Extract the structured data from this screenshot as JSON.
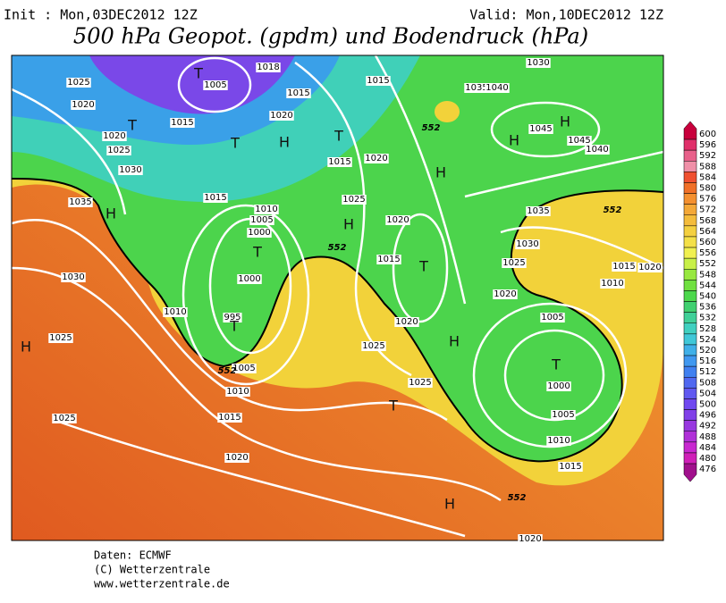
{
  "header": {
    "init": "Init : Mon,03DEC2012 12Z",
    "valid": "Valid: Mon,10DEC2012 12Z",
    "title": "500 hPa Geopot. (gpdm) und Bodendruck (hPa)"
  },
  "map": {
    "isobar_labels": [
      "1018",
      "1005",
      "1025",
      "1020",
      "1015",
      "1020",
      "1025",
      "1030",
      "1035",
      "1030",
      "1025",
      "1025",
      "1015",
      "1020",
      "1015",
      "1015",
      "1020",
      "1025",
      "1015",
      "1010",
      "1005",
      "1000",
      "1000",
      "995",
      "1010",
      "1005",
      "1010",
      "1015",
      "1020",
      "1020",
      "1015",
      "1020",
      "1025",
      "1025",
      "1035",
      "1040",
      "1030",
      "1045",
      "1045",
      "1040",
      "1035",
      "1030",
      "1025",
      "1020",
      "1015",
      "1020",
      "1010",
      "1005",
      "1000",
      "1005",
      "1010",
      "1015",
      "1020"
    ],
    "contour_552_labels": [
      "552",
      "552",
      "552",
      "552",
      "552"
    ],
    "pressure_centers": [
      "H",
      "H",
      "T",
      "T",
      "T",
      "H",
      "T",
      "H",
      "T",
      "T",
      "H",
      "T",
      "H",
      "T",
      "T",
      "H",
      "H",
      "H"
    ]
  },
  "colorbar": {
    "levels": [
      600,
      596,
      592,
      588,
      584,
      580,
      576,
      572,
      568,
      564,
      560,
      556,
      552,
      548,
      544,
      540,
      536,
      532,
      528,
      524,
      520,
      516,
      512,
      508,
      504,
      500,
      496,
      492,
      488,
      484,
      480,
      476
    ],
    "colors": [
      "#c8003c",
      "#e0306a",
      "#e8608a",
      "#f090a8",
      "#f05030",
      "#f07028",
      "#f49030",
      "#f4a838",
      "#f4bc3c",
      "#f4d040",
      "#f4e048",
      "#f0f050",
      "#c8f048",
      "#98e840",
      "#70e040",
      "#4cd84c",
      "#40d070",
      "#40d098",
      "#40d0c0",
      "#40c8d8",
      "#40b0e8",
      "#4098f0",
      "#4080f0",
      "#5068f0",
      "#6058f0",
      "#7048f0",
      "#8040e8",
      "#9838e0",
      "#b030d8",
      "#c828d0",
      "#d020b8",
      "#a0108c"
    ]
  },
  "footer": [
    "Daten: ECMWF",
    "(C) Wetterzentrale",
    "www.wetterzentrale.de"
  ]
}
